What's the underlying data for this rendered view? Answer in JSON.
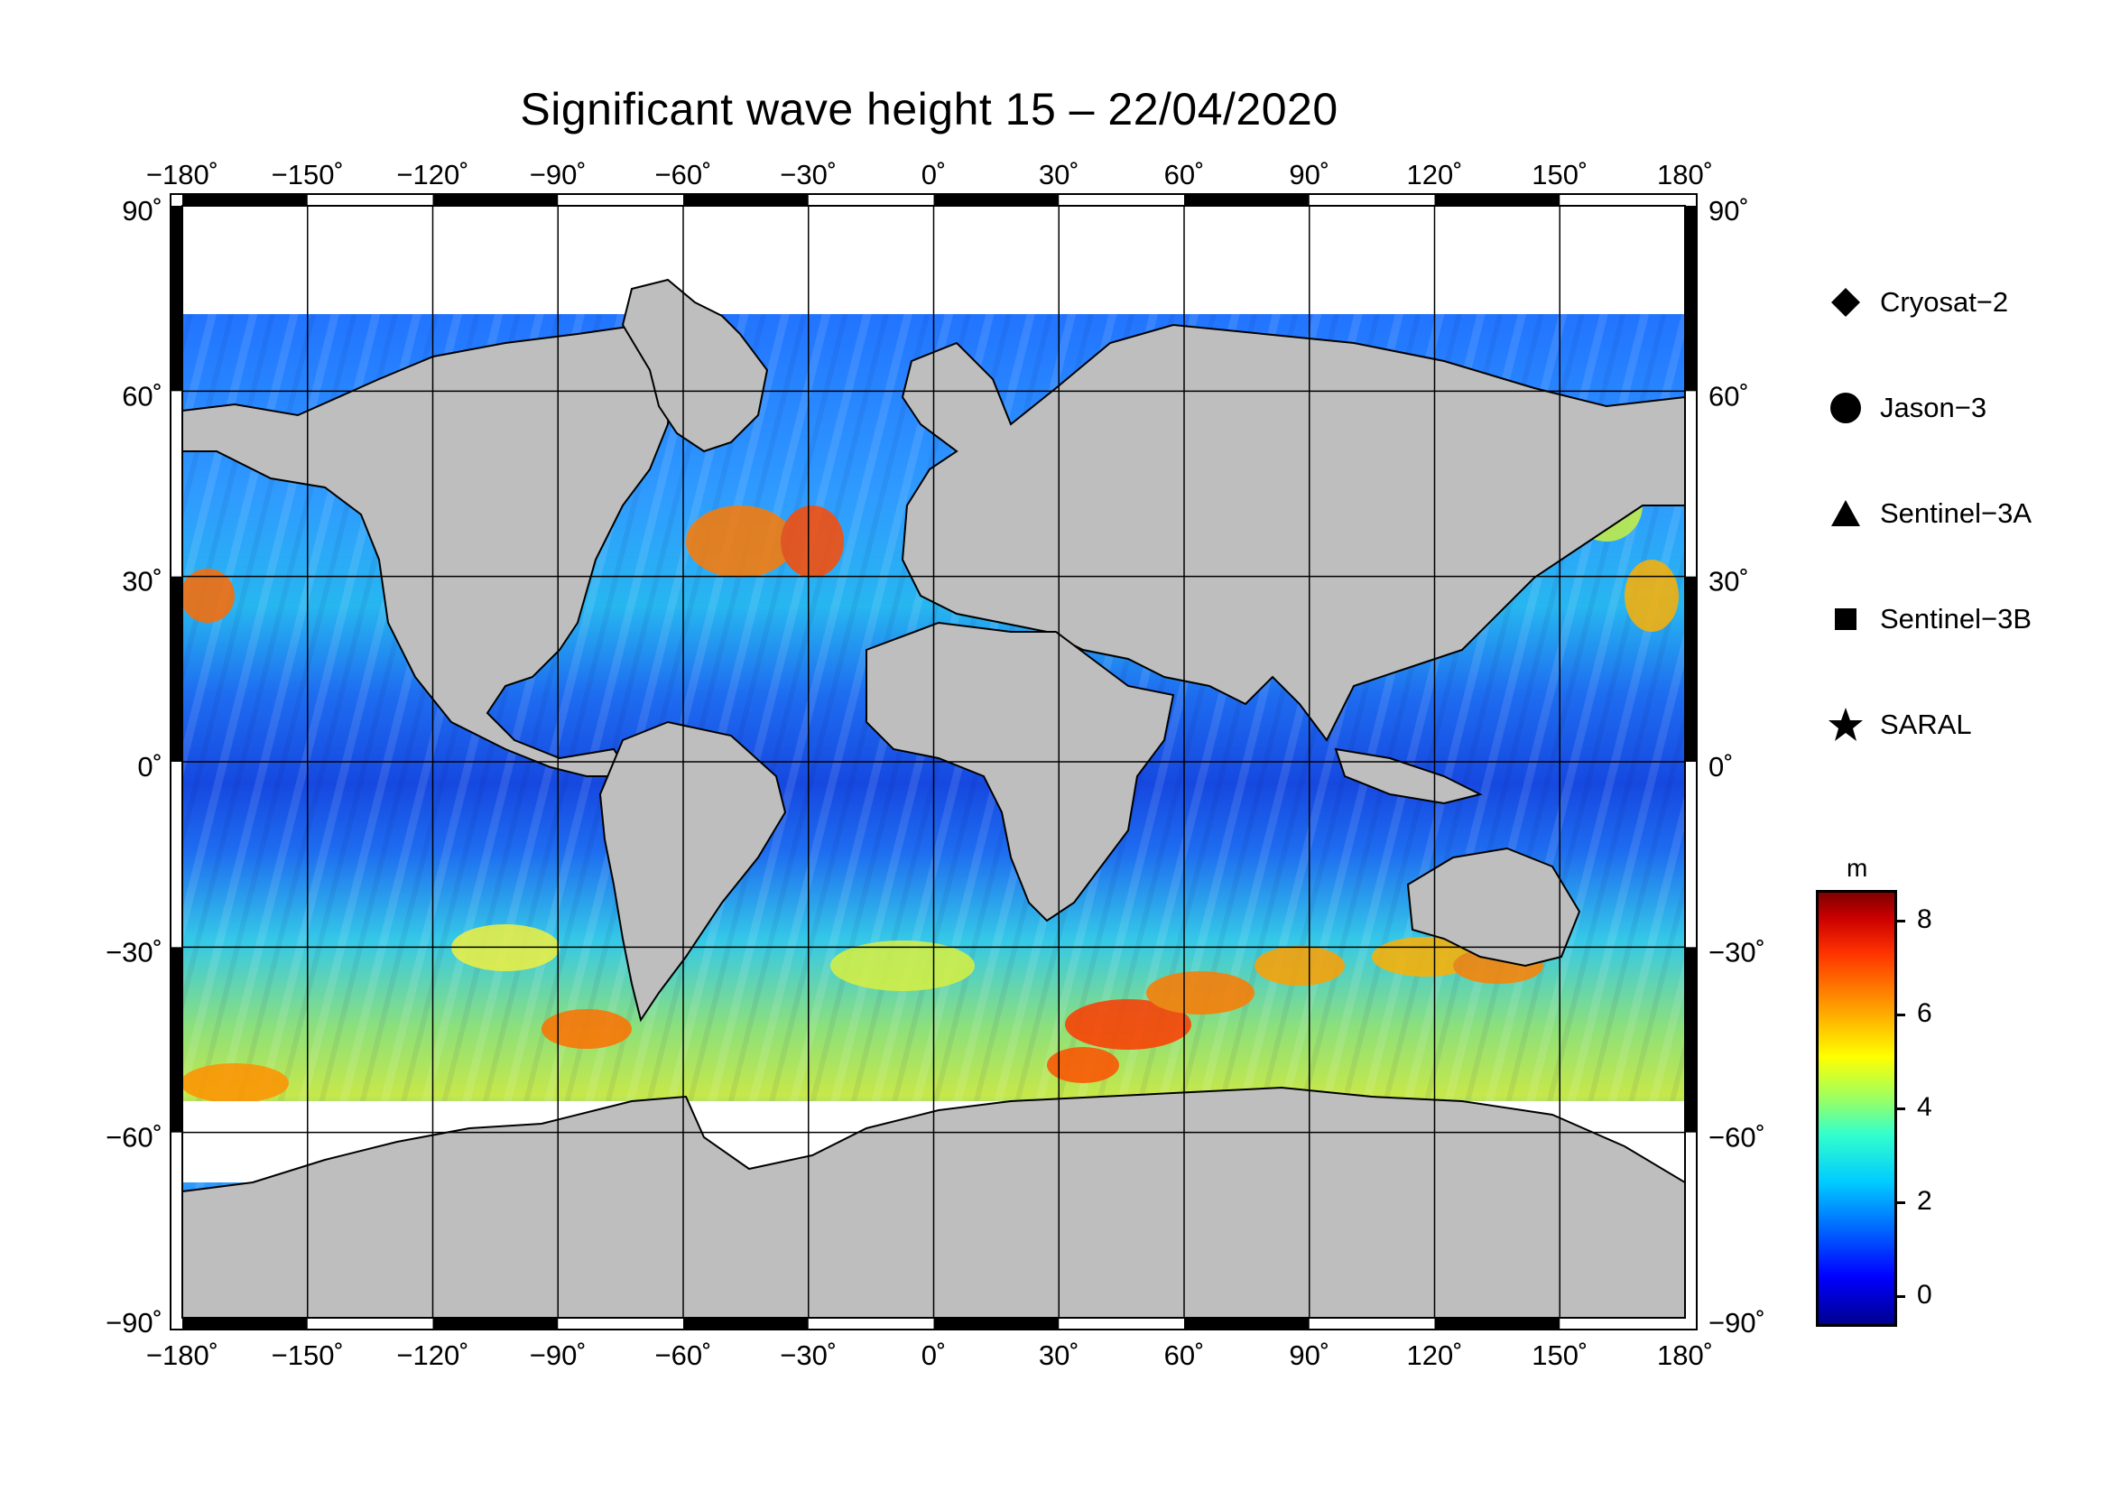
{
  "title": "Significant wave height 15 – 22/04/2020",
  "map": {
    "lon_ticks": [
      "−180˚",
      "−150˚",
      "−120˚",
      "−90˚",
      "−60˚",
      "−30˚",
      "0˚",
      "30˚",
      "60˚",
      "90˚",
      "120˚",
      "150˚",
      "180˚"
    ],
    "lat_ticks": [
      "90˚",
      "60˚",
      "30˚",
      "0˚",
      "−30˚",
      "−60˚",
      "−90˚"
    ],
    "land_color": "#bebebe",
    "ice_color": "#ffffff"
  },
  "legend": {
    "items": [
      {
        "label": "Cryosat−2",
        "symbol": "diamond-icon"
      },
      {
        "label": "Jason−3",
        "symbol": "circle-icon"
      },
      {
        "label": "Sentinel−3A",
        "symbol": "triangle-icon"
      },
      {
        "label": "Sentinel−3B",
        "symbol": "square-icon"
      },
      {
        "label": "SARAL",
        "symbol": "star-icon"
      }
    ]
  },
  "colorbar": {
    "unit": "m",
    "ticks": [
      "8",
      "6",
      "4",
      "2",
      "0"
    ],
    "range": [
      -0.6,
      8.6
    ]
  }
}
